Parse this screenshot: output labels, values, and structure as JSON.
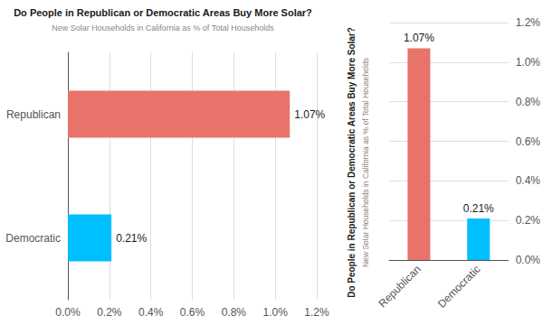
{
  "chart_data": [
    {
      "type": "bar",
      "orientation": "horizontal",
      "title": "Do People in Republican or Democratic Areas Buy More Solar?",
      "subtitle": "New Solar Households in California as % of Total Households",
      "categories": [
        "Republican",
        "Democratic"
      ],
      "values": [
        0.0107,
        0.0021
      ],
      "value_labels": [
        "1.07%",
        "0.21%"
      ],
      "colors": [
        "#E8736A",
        "#00BFFF"
      ],
      "data_labels": true,
      "xlim": [
        0,
        0.012
      ],
      "xticks": [
        {
          "value": 0.0,
          "label": "0.0%"
        },
        {
          "value": 0.002,
          "label": "0.2%"
        },
        {
          "value": 0.004,
          "label": "0.4%"
        },
        {
          "value": 0.006,
          "label": "0.6%"
        },
        {
          "value": 0.008,
          "label": "0.8%"
        },
        {
          "value": 0.01,
          "label": "1.0%"
        },
        {
          "value": 0.012,
          "label": "1.2%"
        }
      ],
      "grid": true
    },
    {
      "type": "bar",
      "title": "Do People in Republican or Democratic Areas Buy More Solar?",
      "subtitle": "New Solar Households in California as % of Total Households",
      "categories": [
        "Republican",
        "Democratic"
      ],
      "values": [
        0.0107,
        0.0021
      ],
      "value_labels": [
        "1.07%",
        "0.21%"
      ],
      "colors": [
        "#E8736A",
        "#00BFFF"
      ],
      "data_labels": true,
      "ylim": [
        0,
        0.012
      ],
      "yticks": [
        {
          "value": 0.0,
          "label": "0.0%"
        },
        {
          "value": 0.002,
          "label": "0.2%"
        },
        {
          "value": 0.004,
          "label": "0.4%"
        },
        {
          "value": 0.006,
          "label": "0.6%"
        },
        {
          "value": 0.008,
          "label": "0.8%"
        },
        {
          "value": 0.01,
          "label": "1.0%"
        },
        {
          "value": 0.012,
          "label": "1.2%"
        }
      ],
      "grid": true
    }
  ]
}
